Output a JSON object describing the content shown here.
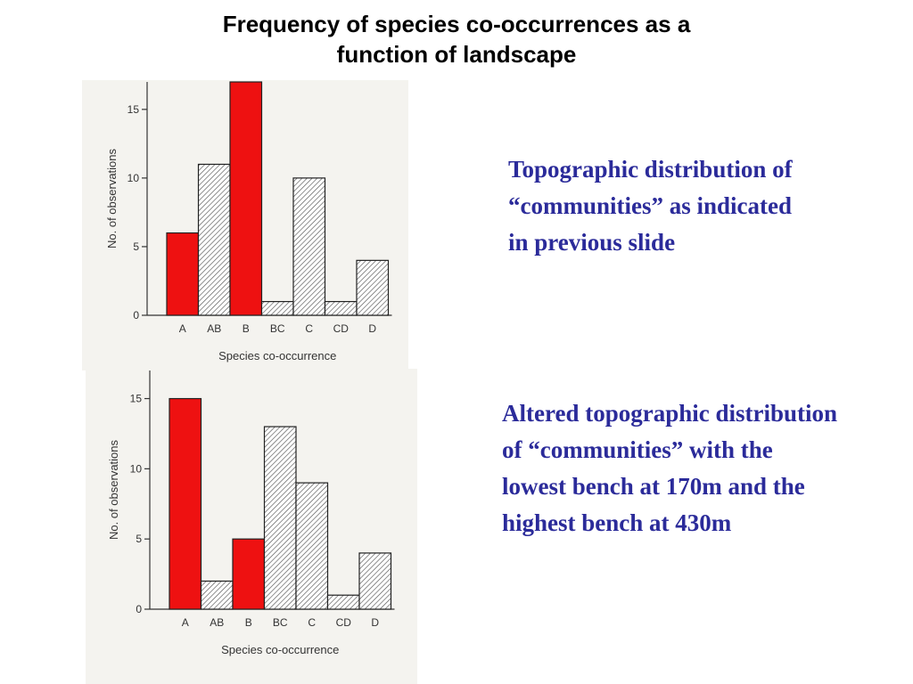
{
  "slide": {
    "title_line1": "Frequency of species co-occurrences as a",
    "title_line2": "function of landscape"
  },
  "captions": {
    "top": "Topographic distribution of “communities” as indicated in previous slide",
    "bottom": "Altered topographic distribution of “communities” with the lowest bench at 170m and the highest bench at 430m"
  },
  "colors": {
    "highlight_bar": "#ee1111",
    "hatched_bar_fill": "#ffffff",
    "hatch_stroke": "#555555",
    "caption_text": "#2b2b9a"
  },
  "chart_data": [
    {
      "type": "bar",
      "categories": [
        "A",
        "AB",
        "B",
        "BC",
        "C",
        "CD",
        "D"
      ],
      "values": [
        6,
        11,
        17,
        1,
        10,
        1,
        4
      ],
      "highlighted": [
        "A",
        "B"
      ],
      "xlabel": "Species co-occurrence",
      "ylabel": "No. of observations",
      "yticks": [
        0,
        5,
        10,
        15
      ],
      "ylim": [
        0,
        17
      ],
      "grid": false
    },
    {
      "type": "bar",
      "categories": [
        "A",
        "AB",
        "B",
        "BC",
        "C",
        "CD",
        "D"
      ],
      "values": [
        15,
        2,
        5,
        13,
        9,
        1,
        4
      ],
      "highlighted": [
        "A",
        "B"
      ],
      "xlabel": "Species co-occurrence",
      "ylabel": "No. of observations",
      "yticks": [
        0,
        5,
        10,
        15
      ],
      "ylim": [
        0,
        17
      ],
      "grid": false
    }
  ]
}
